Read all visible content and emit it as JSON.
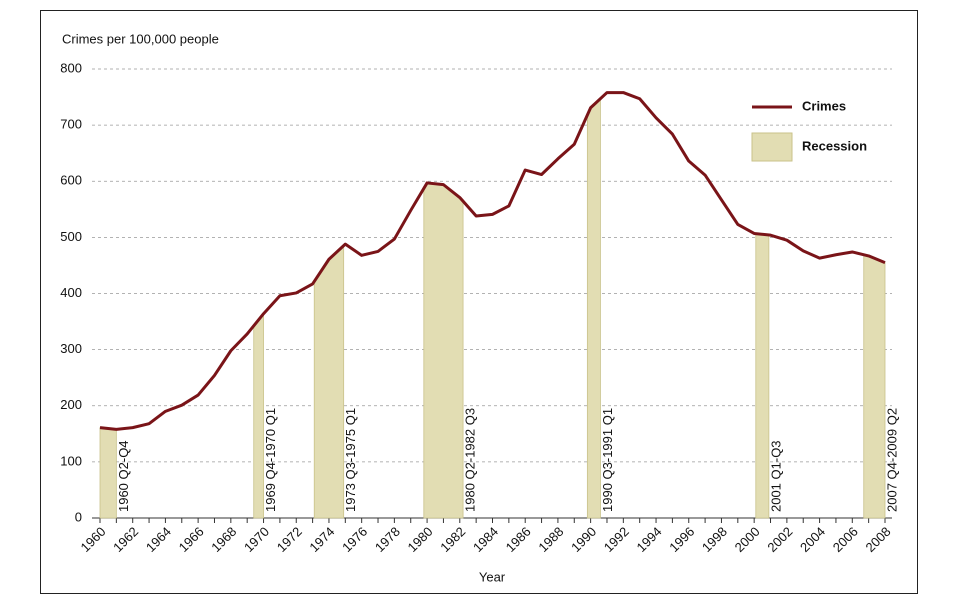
{
  "chart_data": {
    "type": "line",
    "y_label": "Crimes per 100,000 people",
    "x_label": "Year",
    "x": [
      1960,
      1961,
      1962,
      1963,
      1964,
      1965,
      1966,
      1967,
      1968,
      1969,
      1970,
      1971,
      1972,
      1973,
      1974,
      1975,
      1976,
      1977,
      1978,
      1979,
      1980,
      1981,
      1982,
      1983,
      1984,
      1985,
      1986,
      1987,
      1988,
      1989,
      1990,
      1991,
      1992,
      1993,
      1994,
      1995,
      1996,
      1997,
      1998,
      1999,
      2000,
      2001,
      2002,
      2003,
      2004,
      2005,
      2006,
      2007,
      2008
    ],
    "series": [
      {
        "name": "Crimes",
        "color": "#7a1418",
        "values": [
          161,
          158,
          161,
          168,
          190,
          201,
          219,
          254,
          298,
          328,
          364,
          396,
          401,
          417,
          461,
          488,
          468,
          475,
          497,
          548,
          597,
          594,
          571,
          538,
          541,
          556,
          620,
          612,
          640,
          666,
          731,
          758,
          758,
          747,
          713,
          684,
          636,
          611,
          567,
          523,
          507,
          504,
          495,
          476,
          463,
          469,
          474,
          467,
          455
        ]
      }
    ],
    "recession": {
      "name": "Recession",
      "color": "#e2ddb3",
      "edge": "#c9c28a",
      "periods": [
        {
          "label": "1960 Q2-Q4",
          "start": 1960,
          "end": 1961
        },
        {
          "label": "1969 Q4-1970 Q1",
          "start": 1969.4,
          "end": 1970
        },
        {
          "label": "1973 Q3-1975 Q1",
          "start": 1973.1,
          "end": 1974.9
        },
        {
          "label": "1980 Q2-1982 Q3",
          "start": 1979.8,
          "end": 1982.2
        },
        {
          "label": "1990 Q3-1991 Q1",
          "start": 1989.8,
          "end": 1990.6
        },
        {
          "label": "2001 Q1-Q3",
          "start": 2000.1,
          "end": 2000.9
        },
        {
          "label": "2007 Q4-2009 Q2",
          "start": 2006.7,
          "end": 2008
        }
      ]
    },
    "xlim": [
      1960,
      2008
    ],
    "xticks": [
      1960,
      1962,
      1964,
      1966,
      1968,
      1970,
      1972,
      1974,
      1976,
      1978,
      1980,
      1982,
      1984,
      1986,
      1988,
      1990,
      1992,
      1994,
      1996,
      1998,
      2000,
      2002,
      2004,
      2006,
      2008
    ],
    "ylim": [
      0,
      800
    ],
    "yticks": [
      0,
      100,
      200,
      300,
      400,
      500,
      600,
      700,
      800
    ],
    "grid": true,
    "legend": "upper right"
  }
}
